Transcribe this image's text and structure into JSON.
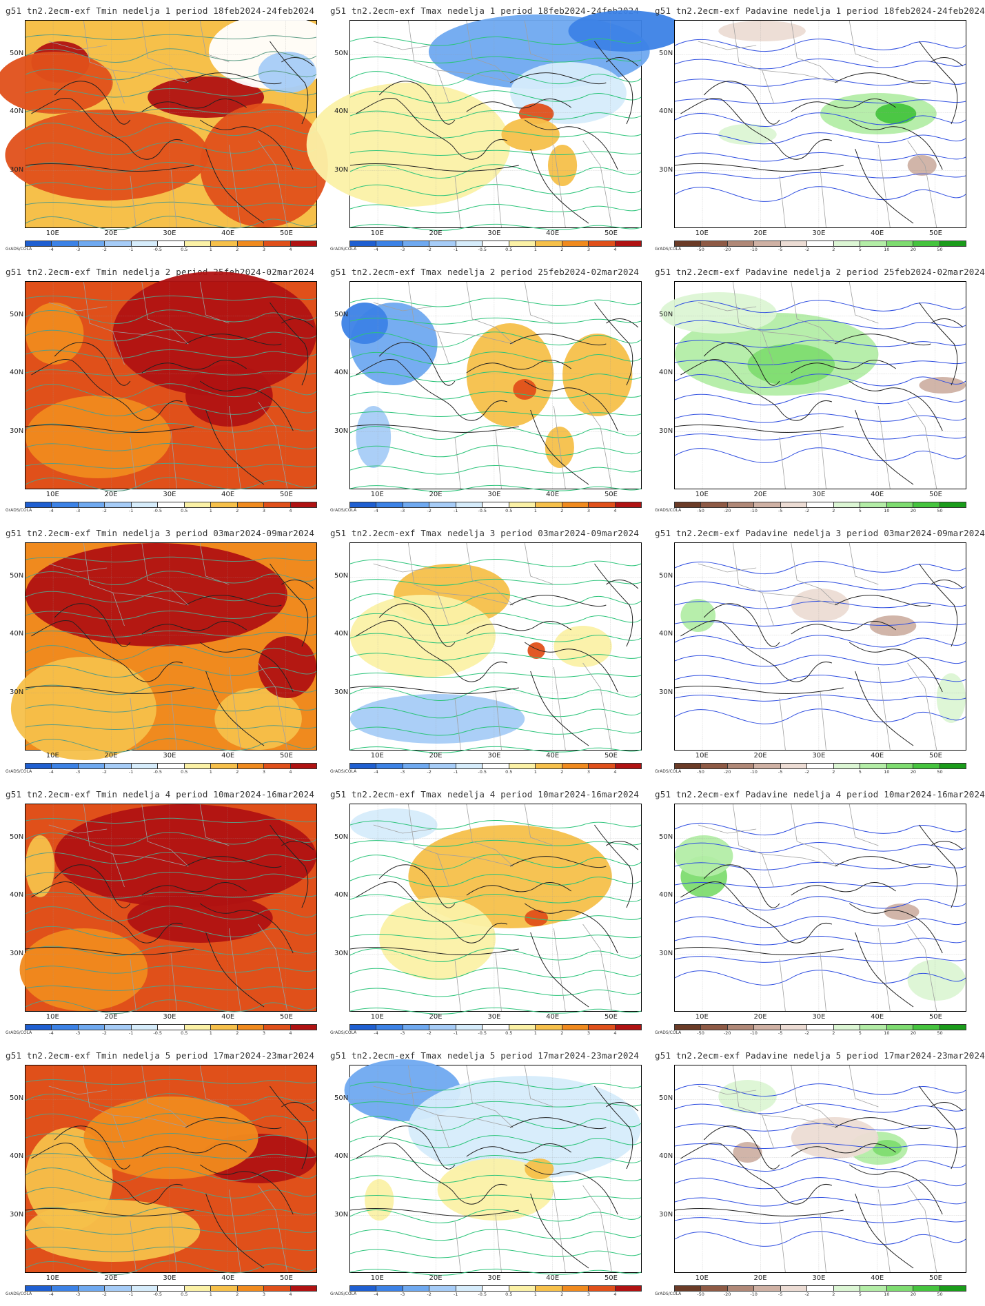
{
  "credit": "GrADS/COLA",
  "lat_labels": [
    "50N",
    "40N",
    "30N"
  ],
  "lon_labels": [
    "10E",
    "20E",
    "30E",
    "40E",
    "50E"
  ],
  "legends": {
    "temp": {
      "labels": [
        "-4",
        "-3",
        "-2",
        "-1",
        "-0.5",
        "0.5",
        "1",
        "2",
        "3",
        "4"
      ],
      "colors": [
        "#1f5fd1",
        "#3c82e6",
        "#6fa9f0",
        "#a6ccf7",
        "#d6ecfb",
        "#ffffff",
        "#fbf1a6",
        "#f6c04a",
        "#f08a1e",
        "#e0501a",
        "#b01212"
      ]
    },
    "precip": {
      "labels": [
        "-50",
        "-20",
        "-10",
        "-5",
        "-2",
        "2",
        "5",
        "10",
        "20",
        "50"
      ],
      "colors": [
        "#6b3b27",
        "#8e5a45",
        "#b08877",
        "#cfb1a4",
        "#ecdcd4",
        "#ffffff",
        "#dcf6d4",
        "#b3eda6",
        "#7edc70",
        "#45c43e",
        "#1a9c1a"
      ]
    }
  },
  "panels": [
    {
      "title": "g51 tn2.2ecm-exf Tmin nedelja 1 period 18feb2024-24feb2024",
      "kind": "tmin",
      "base": "#f6c04a",
      "legend": "temp",
      "blobs": [
        [
          "#e0501a",
          0.28,
          0.65,
          0.35,
          0.22
        ],
        [
          "#b01212",
          0.62,
          0.37,
          0.2,
          0.1
        ],
        [
          "#e0501a",
          0.82,
          0.7,
          0.22,
          0.3
        ],
        [
          "#b01212",
          0.12,
          0.2,
          0.1,
          0.1
        ],
        [
          "#e0501a",
          0.1,
          0.3,
          0.2,
          0.15
        ],
        [
          "#ffffff",
          0.85,
          0.15,
          0.22,
          0.18
        ],
        [
          "#a6ccf7",
          0.9,
          0.25,
          0.1,
          0.1
        ]
      ]
    },
    {
      "title": "g51 tn2.2ecm-exf Tmax nedelja 1 period 18feb2024-24feb2024",
      "kind": "tmax",
      "base": "#ffffff",
      "legend": "temp",
      "blobs": [
        [
          "#6fa9f0",
          0.65,
          0.15,
          0.38,
          0.18
        ],
        [
          "#3c82e6",
          0.95,
          0.05,
          0.2,
          0.1
        ],
        [
          "#d6ecfb",
          0.75,
          0.35,
          0.2,
          0.15
        ],
        [
          "#fbf1a6",
          0.2,
          0.6,
          0.35,
          0.3
        ],
        [
          "#e0501a",
          0.64,
          0.45,
          0.06,
          0.05
        ],
        [
          "#f6c04a",
          0.62,
          0.55,
          0.1,
          0.08
        ],
        [
          "#f6c04a",
          0.73,
          0.7,
          0.05,
          0.1
        ]
      ]
    },
    {
      "title": "g51 tn2.2ecm-exf Padavine nedelja 1 period 18feb2024-24feb2024",
      "kind": "precip",
      "base": "#ffffff",
      "legend": "precip",
      "blobs": [
        [
          "#b3eda6",
          0.7,
          0.45,
          0.2,
          0.1
        ],
        [
          "#45c43e",
          0.76,
          0.45,
          0.07,
          0.05
        ],
        [
          "#ecdcd4",
          0.3,
          0.05,
          0.15,
          0.05
        ],
        [
          "#cfb1a4",
          0.85,
          0.7,
          0.05,
          0.05
        ],
        [
          "#dcf6d4",
          0.25,
          0.55,
          0.1,
          0.05
        ]
      ]
    },
    {
      "title": "g51 tn2.2ecm-exf Tmin nedelja 2 period 25feb2024-02mar2024",
      "kind": "tmin",
      "base": "#e0501a",
      "legend": "temp",
      "blobs": [
        [
          "#b01212",
          0.65,
          0.25,
          0.35,
          0.3
        ],
        [
          "#b01212",
          0.7,
          0.55,
          0.15,
          0.15
        ],
        [
          "#f08a1e",
          0.25,
          0.75,
          0.25,
          0.2
        ],
        [
          "#f08a1e",
          0.1,
          0.25,
          0.1,
          0.15
        ]
      ]
    },
    {
      "title": "g51 tn2.2ecm-exf Tmax nedelja 2 period 25feb2024-02mar2024",
      "kind": "tmax",
      "base": "#ffffff",
      "legend": "temp",
      "blobs": [
        [
          "#6fa9f0",
          0.15,
          0.3,
          0.15,
          0.2
        ],
        [
          "#3c82e6",
          0.05,
          0.2,
          0.08,
          0.1
        ],
        [
          "#a6ccf7",
          0.08,
          0.75,
          0.06,
          0.15
        ],
        [
          "#f6c04a",
          0.55,
          0.45,
          0.15,
          0.25
        ],
        [
          "#f6c04a",
          0.85,
          0.45,
          0.12,
          0.2
        ],
        [
          "#e0501a",
          0.6,
          0.52,
          0.04,
          0.05
        ],
        [
          "#f6c04a",
          0.72,
          0.8,
          0.05,
          0.1
        ]
      ]
    },
    {
      "title": "g51 tn2.2ecm-exf Padavine nedelja 2 period 25feb2024-02mar2024",
      "kind": "precip",
      "base": "#ffffff",
      "legend": "precip",
      "blobs": [
        [
          "#b3eda6",
          0.35,
          0.35,
          0.35,
          0.2
        ],
        [
          "#7edc70",
          0.4,
          0.4,
          0.15,
          0.1
        ],
        [
          "#dcf6d4",
          0.15,
          0.15,
          0.2,
          0.1
        ],
        [
          "#cfb1a4",
          0.92,
          0.5,
          0.08,
          0.04
        ]
      ]
    },
    {
      "title": "g51 tn2.2ecm-exf Tmin nedelja 3 period 03mar2024-09mar2024",
      "kind": "tmin",
      "base": "#f08a1e",
      "legend": "temp",
      "blobs": [
        [
          "#b01212",
          0.45,
          0.25,
          0.45,
          0.25
        ],
        [
          "#f6c04a",
          0.2,
          0.8,
          0.25,
          0.25
        ],
        [
          "#f6c04a",
          0.8,
          0.85,
          0.15,
          0.15
        ],
        [
          "#b01212",
          0.9,
          0.6,
          0.1,
          0.15
        ]
      ]
    },
    {
      "title": "g51 tn2.2ecm-exf Tmax nedelja 3 period 03mar2024-09mar2024",
      "kind": "tmax",
      "base": "#ffffff",
      "legend": "temp",
      "blobs": [
        [
          "#f6c04a",
          0.35,
          0.25,
          0.2,
          0.15
        ],
        [
          "#fbf1a6",
          0.25,
          0.45,
          0.25,
          0.2
        ],
        [
          "#a6ccf7",
          0.3,
          0.85,
          0.3,
          0.12
        ],
        [
          "#e0501a",
          0.64,
          0.52,
          0.03,
          0.04
        ],
        [
          "#fbf1a6",
          0.8,
          0.5,
          0.1,
          0.1
        ]
      ]
    },
    {
      "title": "g51 tn2.2ecm-exf Padavine nedelja 3 period 03mar2024-09mar2024",
      "kind": "precip",
      "base": "#ffffff",
      "legend": "precip",
      "blobs": [
        [
          "#b3eda6",
          0.08,
          0.35,
          0.06,
          0.08
        ],
        [
          "#cfb1a4",
          0.75,
          0.4,
          0.08,
          0.05
        ],
        [
          "#ecdcd4",
          0.5,
          0.3,
          0.1,
          0.08
        ],
        [
          "#dcf6d4",
          0.95,
          0.75,
          0.05,
          0.12
        ]
      ]
    },
    {
      "title": "g51 tn2.2ecm-exf Tmin nedelja 4 period 10mar2024-16mar2024",
      "kind": "tmin",
      "base": "#e0501a",
      "legend": "temp",
      "blobs": [
        [
          "#b01212",
          0.55,
          0.25,
          0.45,
          0.25
        ],
        [
          "#b01212",
          0.6,
          0.55,
          0.25,
          0.12
        ],
        [
          "#f08a1e",
          0.2,
          0.8,
          0.22,
          0.2
        ],
        [
          "#f6c04a",
          0.05,
          0.3,
          0.05,
          0.15
        ]
      ]
    },
    {
      "title": "g51 tn2.2ecm-exf Tmax nedelja 4 period 10mar2024-16mar2024",
      "kind": "tmax",
      "base": "#ffffff",
      "legend": "temp",
      "blobs": [
        [
          "#f6c04a",
          0.55,
          0.35,
          0.35,
          0.25
        ],
        [
          "#e0501a",
          0.64,
          0.55,
          0.04,
          0.04
        ],
        [
          "#fbf1a6",
          0.3,
          0.65,
          0.2,
          0.2
        ],
        [
          "#d6ecfb",
          0.15,
          0.1,
          0.15,
          0.08
        ]
      ]
    },
    {
      "title": "g51 tn2.2ecm-exf Padavine nedelja 4 period 10mar2024-16mar2024",
      "kind": "precip",
      "base": "#ffffff",
      "legend": "precip",
      "blobs": [
        [
          "#7edc70",
          0.1,
          0.35,
          0.08,
          0.1
        ],
        [
          "#b3eda6",
          0.1,
          0.25,
          0.1,
          0.1
        ],
        [
          "#cfb1a4",
          0.78,
          0.52,
          0.06,
          0.04
        ],
        [
          "#dcf6d4",
          0.9,
          0.85,
          0.1,
          0.1
        ]
      ]
    },
    {
      "title": "g51 tn2.2ecm-exf Tmin nedelja 5 period 17mar2024-23mar2024",
      "kind": "tmin",
      "base": "#e0501a",
      "legend": "temp",
      "blobs": [
        [
          "#f6c04a",
          0.15,
          0.55,
          0.15,
          0.25
        ],
        [
          "#f6c04a",
          0.3,
          0.8,
          0.3,
          0.15
        ],
        [
          "#b01212",
          0.8,
          0.45,
          0.2,
          0.12
        ],
        [
          "#f08a1e",
          0.5,
          0.35,
          0.3,
          0.2
        ]
      ]
    },
    {
      "title": "g51 tn2.2ecm-exf Tmax nedelja 5 period 17mar2024-23mar2024",
      "kind": "tmax",
      "base": "#ffffff",
      "legend": "temp",
      "blobs": [
        [
          "#6fa9f0",
          0.18,
          0.12,
          0.2,
          0.15
        ],
        [
          "#d6ecfb",
          0.6,
          0.3,
          0.4,
          0.25
        ],
        [
          "#fbf1a6",
          0.5,
          0.6,
          0.2,
          0.15
        ],
        [
          "#f6c04a",
          0.65,
          0.5,
          0.05,
          0.05
        ],
        [
          "#fbf1a6",
          0.1,
          0.65,
          0.05,
          0.1
        ]
      ]
    },
    {
      "title": "g51 tn2.2ecm-exf Padavine nedelja 5 period 17mar2024-23mar2024",
      "kind": "precip",
      "base": "#ffffff",
      "legend": "precip",
      "blobs": [
        [
          "#b3eda6",
          0.7,
          0.4,
          0.1,
          0.08
        ],
        [
          "#7edc70",
          0.73,
          0.4,
          0.05,
          0.04
        ],
        [
          "#cfb1a4",
          0.25,
          0.42,
          0.05,
          0.05
        ],
        [
          "#dcf6d4",
          0.25,
          0.15,
          0.1,
          0.08
        ],
        [
          "#ecdcd4",
          0.55,
          0.35,
          0.15,
          0.1
        ]
      ]
    }
  ]
}
